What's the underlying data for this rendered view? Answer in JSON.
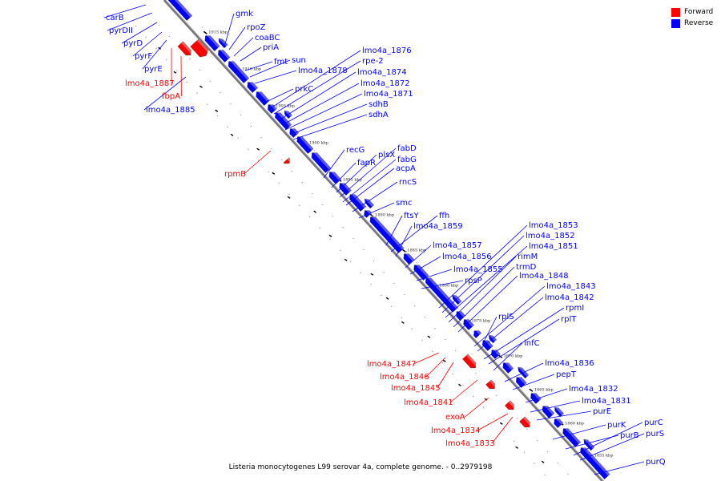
{
  "caption": "Listeria monocytogenes L99 serovar 4a, complete genome. - 0..2979198",
  "legend": [
    {
      "label": "Forward",
      "color": "#ff0000"
    },
    {
      "label": "Reverse",
      "color": "#0000ff"
    }
  ],
  "colors": {
    "forward": "#ff0000",
    "reverse": "#0000ff",
    "backbone": "#888888"
  },
  "ticks": [
    "1915 kbp",
    "1910 kbp",
    "1905 kbp",
    "1900 kbp",
    "1895 kbp",
    "1890 kbp",
    "1885 kbp",
    "1880 kbp",
    "1875 kbp",
    "1870 kbp",
    "1865 kbp",
    "1860 kbp",
    "1855 kbp"
  ],
  "reverse_genes": [
    "gmk",
    "rpoZ",
    "coaBC",
    "priA",
    "fmt",
    "sun",
    "lmo4a_1878",
    "prkC",
    "lmo4a_1876",
    "rpe-2",
    "lmo4a_1874",
    "lmo4a_1872",
    "lmo4a_1871",
    "sdhB",
    "sdhA",
    "recG",
    "fapR",
    "plsX",
    "fabD",
    "fabG",
    "acpA",
    "rncS",
    "smc",
    "ftsY",
    "ffh",
    "lmo4a_1859",
    "lmo4a_1857",
    "lmo4a_1856",
    "lmo4a_1855",
    "rpsP",
    "lmo4a_1853",
    "lmo4a_1852",
    "lmo4a_1851",
    "rimM",
    "trmD",
    "lmo4a_1848",
    "lmo4a_1843",
    "lmo4a_1842",
    "rplS",
    "rpmI",
    "rplT",
    "infC",
    "lmo4a_1836",
    "pepT",
    "lmo4a_1832",
    "lmo4a_1831",
    "purE",
    "purK",
    "purB",
    "purC",
    "purS",
    "purQ",
    "carB",
    "pyrDII",
    "pyrD",
    "pyrF",
    "pyrE",
    "lmo4a_1885"
  ],
  "forward_genes": [
    "lmo4a_1887",
    "fbpA",
    "rpmB",
    "lmo4a_1847",
    "lmo4a_1846",
    "lmo4a_1845",
    "lmo4a_1841",
    "exoA",
    "lmo4a_1834",
    "lmo4a_1833"
  ]
}
